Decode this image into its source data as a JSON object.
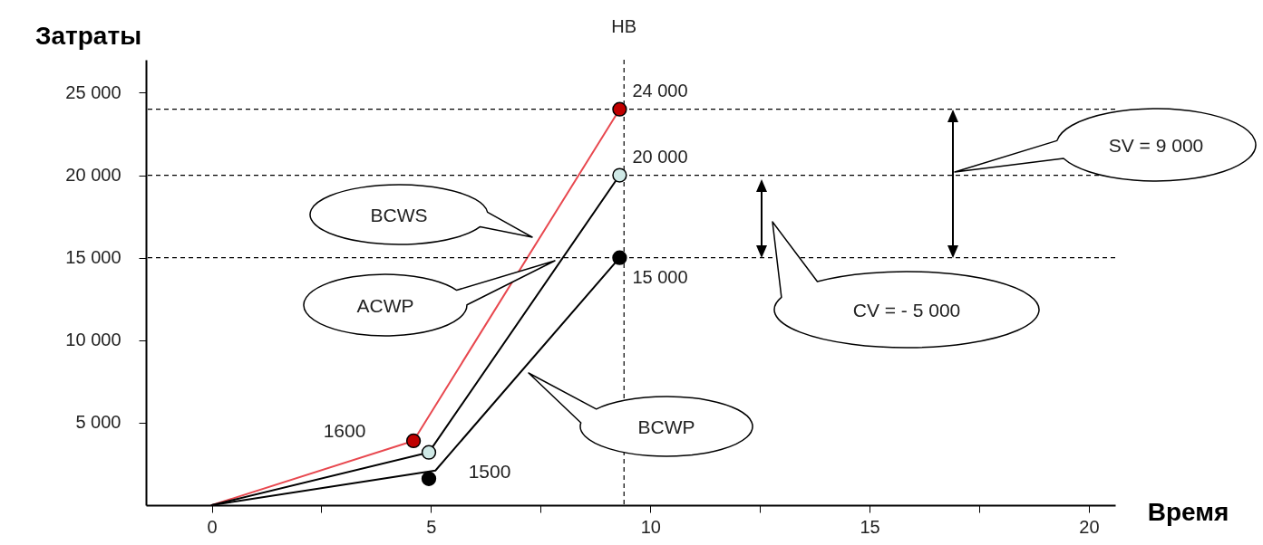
{
  "chart_data": {
    "type": "line",
    "xlabel": "Время",
    "ylabel": "Затраты",
    "xlim": [
      -1.5,
      20.6
    ],
    "xticks": [
      0,
      {
        "value": 2.5,
        "label": null
      },
      5,
      {
        "value": 7.5,
        "label": null
      },
      10,
      {
        "value": 12.5,
        "label": null
      },
      15,
      {
        "value": 17.5,
        "label": null
      },
      20
    ],
    "ylim": [
      0,
      27000
    ],
    "yticks": [
      {
        "value": 5000,
        "label": "5 000"
      },
      {
        "value": 10000,
        "label": "10 000"
      },
      {
        "value": 15000,
        "label": "15 000"
      },
      {
        "value": 20000,
        "label": "20 000"
      },
      {
        "value": 25000,
        "label": "25 000"
      }
    ],
    "grid": false,
    "legend": false,
    "marker": "circle",
    "line_style": "solid",
    "series": [
      {
        "name": "BCWS",
        "color": "#e8484f",
        "colors": [
          null,
          "#c00000",
          "#c00000"
        ],
        "x": [
          0,
          4.6,
          9.3
        ],
        "values": [
          0,
          3900,
          24000
        ],
        "value_labels": [
          null,
          null,
          "24 000"
        ]
      },
      {
        "name": "ACWP",
        "color": "#000000",
        "colors": [
          null,
          "#cfe9e6",
          "#cfe9e6"
        ],
        "x": [
          0,
          4.95,
          9.3
        ],
        "values": [
          0,
          3200,
          20000
        ],
        "value_labels": [
          null,
          null,
          "20 000"
        ]
      },
      {
        "name": "BCWP",
        "color": "#000000",
        "marker": "none",
        "x": [
          0,
          5.1,
          9.3
        ],
        "values": [
          0,
          2100,
          15000
        ],
        "value_labels": [
          null,
          null,
          "15 000"
        ]
      },
      {
        "type": "scatter",
        "color": "#000000",
        "x": [
          4.95,
          9.3
        ],
        "values": [
          1600,
          15000
        ]
      }
    ],
    "ref_lines": [
      {
        "axis": "y",
        "value": 24000,
        "line_style": "dashed"
      },
      {
        "axis": "y",
        "value": 20000,
        "line_style": "dashed"
      },
      {
        "axis": "y",
        "value": 15000,
        "line_style": "dashed"
      },
      {
        "axis": "x",
        "value": 9.4,
        "label": "НВ",
        "line_style": "dashed"
      }
    ],
    "annotations": [
      "1600",
      "1500",
      "SV = 9 000",
      "CV = - 5 000"
    ]
  }
}
